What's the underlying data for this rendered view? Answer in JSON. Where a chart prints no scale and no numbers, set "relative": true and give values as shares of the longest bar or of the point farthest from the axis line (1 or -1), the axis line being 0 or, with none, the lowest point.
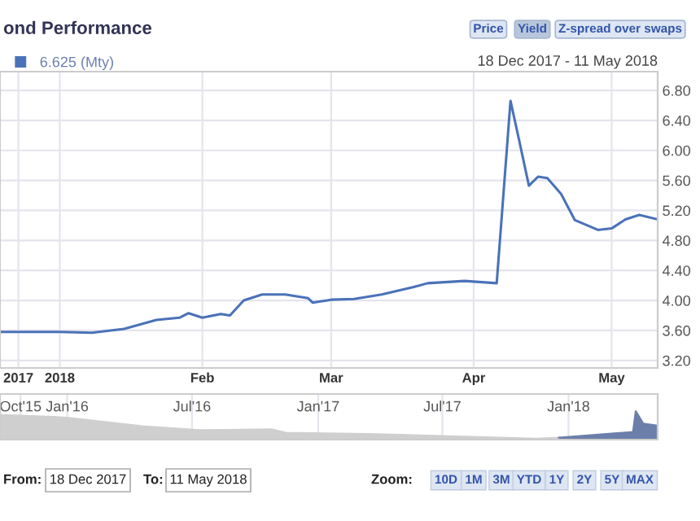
{
  "chart_data": [
    {
      "type": "line",
      "title": "ond Performance",
      "subtitle": "18 Dec 2017 - 11 May 2018",
      "annotations": [
        "Price",
        "Yield",
        "Z-spread over swaps",
        "From:",
        "18 Dec 2017",
        "To:",
        "11 May 2018",
        "Zoom:",
        "10D",
        "1M",
        "3M",
        "YTD",
        "1Y",
        "2Y",
        "5Y",
        "MAX"
      ],
      "series": [
        {
          "name": "6.625 (Mty)",
          "color": "#4a72b8",
          "x": [
            "2017-12-19",
            "2017-12-25",
            "2018-01-01",
            "2018-01-08",
            "2018-01-15",
            "2018-01-22",
            "2018-01-27",
            "2018-01-29",
            "2018-02-01",
            "2018-02-05",
            "2018-02-07",
            "2018-02-10",
            "2018-02-14",
            "2018-02-19",
            "2018-02-24",
            "2018-02-25",
            "2018-03-01",
            "2018-03-06",
            "2018-03-12",
            "2018-03-19",
            "2018-03-22",
            "2018-03-30",
            "2018-04-06",
            "2018-04-09",
            "2018-04-11",
            "2018-04-13",
            "2018-04-15",
            "2018-04-17",
            "2018-04-20",
            "2018-04-23",
            "2018-04-28",
            "2018-05-01",
            "2018-05-04",
            "2018-05-07",
            "2018-05-11"
          ],
          "values": [
            3.58,
            3.58,
            3.58,
            3.57,
            3.62,
            3.74,
            3.77,
            3.83,
            3.77,
            3.82,
            3.8,
            4.0,
            4.08,
            4.08,
            4.03,
            3.97,
            4.01,
            4.02,
            4.08,
            4.18,
            4.23,
            4.26,
            4.23,
            6.66,
            6.1,
            5.53,
            5.65,
            5.63,
            5.42,
            5.07,
            4.94,
            4.96,
            5.08,
            5.14,
            5.08
          ]
        }
      ],
      "xlim": [
        "2017-12-19",
        "2018-05-11"
      ],
      "xticks": [
        {
          "value": "2017-12-23",
          "label": "2017"
        },
        {
          "value": "2018-01-01",
          "label": "2018"
        },
        {
          "value": "2018-02-01",
          "label": "Feb"
        },
        {
          "value": "2018-03-01",
          "label": "Mar"
        },
        {
          "value": "2018-04-01",
          "label": "Apr"
        },
        {
          "value": "2018-05-01",
          "label": "May"
        }
      ],
      "ylim": [
        3.1,
        7.05
      ],
      "yticks": [
        {
          "value": 3.2,
          "label": "3.20"
        },
        {
          "value": 3.6,
          "label": "3.60"
        },
        {
          "value": 4.0,
          "label": "4.00"
        },
        {
          "value": 4.4,
          "label": "4.40"
        },
        {
          "value": 4.8,
          "label": "4.80"
        },
        {
          "value": 5.2,
          "label": "5.20"
        },
        {
          "value": 5.6,
          "label": "5.60"
        },
        {
          "value": 6.0,
          "label": "6.00"
        },
        {
          "value": 6.4,
          "label": "6.40"
        },
        {
          "value": 6.8,
          "label": "6.80"
        }
      ],
      "grid": true,
      "legend": "top left",
      "marker": "none",
      "line_style": "solid"
    },
    {
      "type": "area",
      "relative": true,
      "tick_labels": "x",
      "grid": "x",
      "series": [
        {
          "color": "#cfcfcf",
          "x": [
            "2015-09-25",
            "2015-12-13",
            "2016-01-01",
            "2016-04-20",
            "2016-07-12",
            "2016-10-25",
            "2016-11-15",
            "2017-03-15",
            "2017-06-20",
            "2017-11-15",
            "2017-12-18"
          ],
          "values": [
            0.87,
            0.8,
            0.77,
            0.47,
            0.33,
            0.36,
            0.24,
            0.2,
            0.13,
            0.03,
            0.07
          ]
        },
        {
          "color": "#6b7faa",
          "x": [
            "2017-12-18",
            "2018-04-05",
            "2018-04-09",
            "2018-04-20",
            "2018-05-11"
          ],
          "values": [
            0.07,
            0.27,
            1.0,
            0.56,
            0.49
          ]
        }
      ],
      "xlim": [
        "2015-09-25",
        "2018-05-11"
      ],
      "xticks": [
        {
          "value": "2015-10-25",
          "label": "Oct'15"
        },
        {
          "value": "2016-01-01",
          "label": "Jan'16"
        },
        {
          "value": "2016-07-01",
          "label": "Jul'16"
        },
        {
          "value": "2017-01-01",
          "label": "Jan'17"
        },
        {
          "value": "2017-07-01",
          "label": "Jul'17"
        },
        {
          "value": "2018-01-01",
          "label": "Jan'18"
        }
      ]
    }
  ]
}
